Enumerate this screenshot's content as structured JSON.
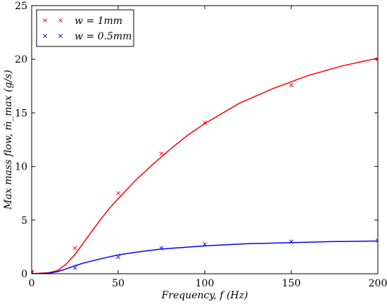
{
  "chart_data": {
    "type": "line",
    "xlabel": "Frequency, f (Hz)",
    "ylabel": "Max mass flow, ṁ_max (g/s)",
    "xlim": [
      0,
      200
    ],
    "ylim": [
      0,
      25
    ],
    "x_ticks": [
      "0",
      "50",
      "100",
      "150",
      "200"
    ],
    "y_ticks": [
      "0",
      "5",
      "10",
      "15",
      "20",
      "25"
    ],
    "grid": false,
    "legend_position": "top-left",
    "series": [
      {
        "name": "w = 1mm",
        "color": "#ff0000",
        "marker": "x",
        "points": [
          {
            "x": 0,
            "y": 0.2
          },
          {
            "x": 25,
            "y": 2.4
          },
          {
            "x": 50,
            "y": 7.5
          },
          {
            "x": 75,
            "y": 11.2
          },
          {
            "x": 100,
            "y": 14.1
          },
          {
            "x": 150,
            "y": 17.6
          },
          {
            "x": 200,
            "y": 20.0
          }
        ],
        "fit_curve": [
          {
            "x": 0,
            "y": 0.0
          },
          {
            "x": 10,
            "y": 0.1
          },
          {
            "x": 15,
            "y": 0.3
          },
          {
            "x": 20,
            "y": 0.9
          },
          {
            "x": 25,
            "y": 1.8
          },
          {
            "x": 30,
            "y": 2.9
          },
          {
            "x": 35,
            "y": 4.0
          },
          {
            "x": 40,
            "y": 5.1
          },
          {
            "x": 45,
            "y": 6.1
          },
          {
            "x": 50,
            "y": 7.0
          },
          {
            "x": 60,
            "y": 8.7
          },
          {
            "x": 70,
            "y": 10.2
          },
          {
            "x": 80,
            "y": 11.6
          },
          {
            "x": 90,
            "y": 12.9
          },
          {
            "x": 100,
            "y": 14.0
          },
          {
            "x": 120,
            "y": 15.9
          },
          {
            "x": 140,
            "y": 17.3
          },
          {
            "x": 160,
            "y": 18.5
          },
          {
            "x": 180,
            "y": 19.4
          },
          {
            "x": 200,
            "y": 20.1
          }
        ]
      },
      {
        "name": "w = 0.5mm",
        "color": "#0000ff",
        "marker": "x",
        "points": [
          {
            "x": 0,
            "y": 0.1
          },
          {
            "x": 25,
            "y": 0.55
          },
          {
            "x": 50,
            "y": 1.55
          },
          {
            "x": 75,
            "y": 2.4
          },
          {
            "x": 100,
            "y": 2.75
          },
          {
            "x": 150,
            "y": 3.0
          },
          {
            "x": 200,
            "y": 3.1
          }
        ],
        "fit_curve": [
          {
            "x": 0,
            "y": 0.0
          },
          {
            "x": 10,
            "y": 0.05
          },
          {
            "x": 15,
            "y": 0.2
          },
          {
            "x": 20,
            "y": 0.45
          },
          {
            "x": 25,
            "y": 0.75
          },
          {
            "x": 30,
            "y": 1.0
          },
          {
            "x": 40,
            "y": 1.4
          },
          {
            "x": 50,
            "y": 1.75
          },
          {
            "x": 60,
            "y": 2.0
          },
          {
            "x": 75,
            "y": 2.3
          },
          {
            "x": 100,
            "y": 2.6
          },
          {
            "x": 125,
            "y": 2.8
          },
          {
            "x": 150,
            "y": 2.9
          },
          {
            "x": 175,
            "y": 3.0
          },
          {
            "x": 200,
            "y": 3.05
          }
        ]
      }
    ]
  }
}
